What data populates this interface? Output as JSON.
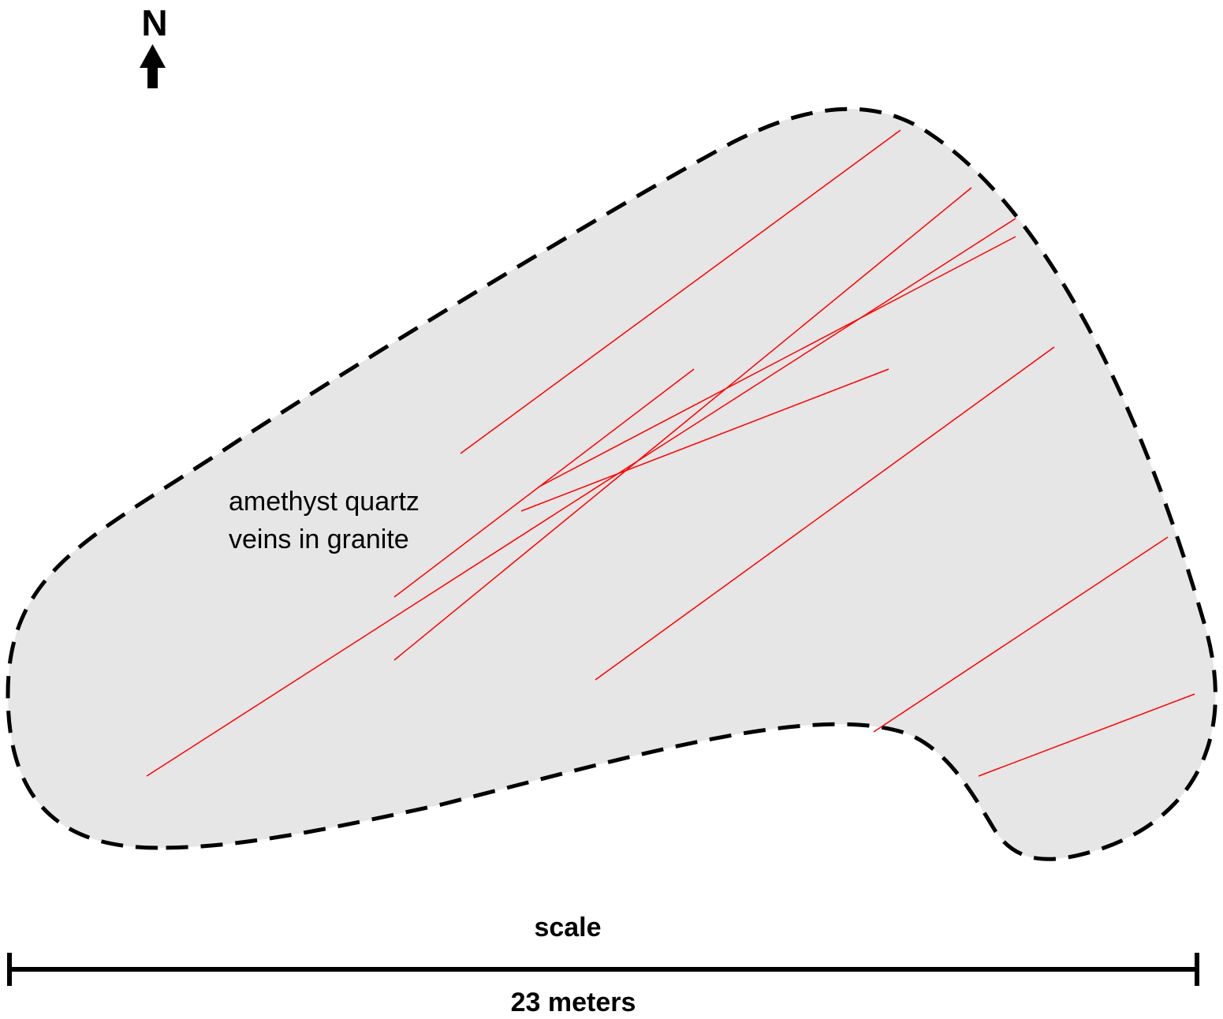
{
  "north_label": "N",
  "outcrop_label": {
    "line1": "amethyst quartz",
    "line2": "veins in granite"
  },
  "scale": {
    "title": "scale",
    "value": "23 meters"
  },
  "colors": {
    "outcrop_fill": "#e6e6e6",
    "outcrop_border": "#000000",
    "vein": "#ff0000"
  },
  "icons": {
    "north": "north-arrow-icon"
  }
}
